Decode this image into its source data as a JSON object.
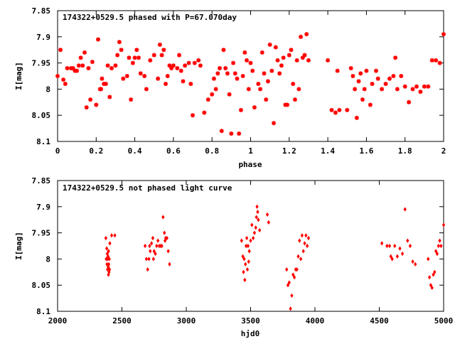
{
  "chart_data": [
    {
      "type": "scatter",
      "title": "174322+0529.5 phased with P=67.070day",
      "xlabel": "phase",
      "ylabel": "I[mag]",
      "xlim": [
        0,
        2
      ],
      "ylim": [
        8.1,
        7.85
      ],
      "y_inverted": true,
      "grid": false,
      "marker": "star",
      "color": "#ff0000",
      "x_ticks": [
        "0",
        "0.2",
        "0.4",
        "0.6",
        "0.8",
        "1",
        "1.2",
        "1.4",
        "1.6",
        "1.8",
        "2"
      ],
      "y_ticks": [
        "7.85",
        "7.9",
        "7.95",
        "8",
        "8.05",
        "8.1"
      ],
      "points": [
        [
          0.0,
          7.975
        ],
        [
          0.015,
          7.925
        ],
        [
          0.03,
          7.982
        ],
        [
          0.04,
          7.99
        ],
        [
          0.05,
          7.96
        ],
        [
          0.07,
          7.96
        ],
        [
          0.08,
          7.96
        ],
        [
          0.09,
          7.965
        ],
        [
          0.1,
          7.965
        ],
        [
          0.11,
          7.955
        ],
        [
          0.12,
          7.94
        ],
        [
          0.13,
          7.955
        ],
        [
          0.14,
          7.93
        ],
        [
          0.15,
          8.035
        ],
        [
          0.16,
          7.96
        ],
        [
          0.17,
          8.02
        ],
        [
          0.18,
          7.948
        ],
        [
          0.2,
          8.03
        ],
        [
          0.21,
          7.905
        ],
        [
          0.22,
          8.0
        ],
        [
          0.225,
          8.0
        ],
        [
          0.23,
          7.98
        ],
        [
          0.24,
          7.99
        ],
        [
          0.25,
          7.99
        ],
        [
          0.26,
          7.955
        ],
        [
          0.27,
          8.015
        ],
        [
          0.28,
          7.96
        ],
        [
          0.3,
          7.955
        ],
        [
          0.31,
          7.935
        ],
        [
          0.32,
          7.91
        ],
        [
          0.33,
          7.925
        ],
        [
          0.34,
          7.98
        ],
        [
          0.36,
          7.975
        ],
        [
          0.37,
          7.94
        ],
        [
          0.38,
          8.02
        ],
        [
          0.39,
          7.95
        ],
        [
          0.4,
          7.94
        ],
        [
          0.41,
          7.925
        ],
        [
          0.42,
          7.94
        ],
        [
          0.43,
          7.97
        ],
        [
          0.45,
          7.975
        ],
        [
          0.46,
          8.0
        ],
        [
          0.48,
          7.945
        ],
        [
          0.5,
          7.935
        ],
        [
          0.52,
          7.98
        ],
        [
          0.53,
          7.915
        ],
        [
          0.54,
          7.935
        ],
        [
          0.55,
          7.925
        ],
        [
          0.56,
          7.99
        ],
        [
          0.57,
          7.975
        ],
        [
          0.58,
          7.955
        ],
        [
          0.59,
          7.96
        ],
        [
          0.6,
          7.955
        ],
        [
          0.62,
          7.96
        ],
        [
          0.63,
          7.935
        ],
        [
          0.64,
          7.965
        ],
        [
          0.65,
          7.985
        ],
        [
          0.66,
          7.955
        ],
        [
          0.68,
          7.95
        ],
        [
          0.69,
          7.99
        ],
        [
          0.7,
          8.05
        ],
        [
          0.71,
          7.95
        ],
        [
          0.73,
          7.945
        ],
        [
          0.74,
          7.955
        ],
        [
          0.76,
          8.045
        ],
        [
          0.78,
          8.02
        ],
        [
          0.8,
          8.01
        ],
        [
          0.81,
          7.98
        ],
        [
          0.82,
          8.0
        ],
        [
          0.83,
          7.97
        ],
        [
          0.84,
          7.96
        ],
        [
          0.85,
          8.08
        ],
        [
          0.86,
          7.925
        ],
        [
          0.87,
          7.96
        ],
        [
          0.88,
          7.97
        ],
        [
          0.89,
          8.01
        ],
        [
          0.9,
          8.085
        ],
        [
          0.91,
          7.95
        ],
        [
          0.92,
          7.97
        ],
        [
          0.93,
          7.98
        ],
        [
          0.94,
          8.085
        ],
        [
          0.95,
          8.04
        ],
        [
          0.96,
          7.975
        ],
        [
          0.97,
          7.93
        ],
        [
          0.98,
          7.945
        ],
        [
          0.99,
          8.0
        ],
        [
          1.0,
          7.95
        ],
        [
          1.01,
          7.965
        ],
        [
          1.02,
          8.035
        ],
        [
          1.04,
          7.99
        ],
        [
          1.05,
          8.0
        ],
        [
          1.06,
          7.93
        ],
        [
          1.07,
          7.97
        ],
        [
          1.08,
          8.02
        ],
        [
          1.09,
          7.985
        ],
        [
          1.1,
          7.915
        ],
        [
          1.11,
          7.965
        ],
        [
          1.12,
          8.065
        ],
        [
          1.13,
          7.92
        ],
        [
          1.14,
          7.945
        ],
        [
          1.15,
          7.97
        ],
        [
          1.16,
          7.955
        ],
        [
          1.17,
          7.94
        ],
        [
          1.18,
          8.03
        ],
        [
          1.19,
          8.03
        ],
        [
          1.2,
          7.935
        ],
        [
          1.21,
          7.925
        ],
        [
          1.22,
          7.99
        ],
        [
          1.23,
          8.02
        ],
        [
          1.24,
          7.945
        ],
        [
          1.25,
          8.0
        ],
        [
          1.26,
          7.9
        ],
        [
          1.27,
          7.94
        ],
        [
          1.28,
          7.935
        ],
        [
          1.29,
          7.895
        ],
        [
          1.3,
          7.945
        ],
        [
          1.4,
          7.945
        ],
        [
          1.42,
          8.04
        ],
        [
          1.44,
          8.045
        ],
        [
          1.45,
          7.965
        ],
        [
          1.46,
          8.04
        ],
        [
          1.5,
          8.04
        ],
        [
          1.52,
          7.96
        ],
        [
          1.53,
          7.975
        ],
        [
          1.54,
          8.0
        ],
        [
          1.55,
          8.055
        ],
        [
          1.56,
          7.985
        ],
        [
          1.57,
          7.97
        ],
        [
          1.58,
          8.02
        ],
        [
          1.59,
          8.0
        ],
        [
          1.6,
          7.965
        ],
        [
          1.62,
          8.03
        ],
        [
          1.63,
          7.99
        ],
        [
          1.65,
          7.965
        ],
        [
          1.66,
          7.98
        ],
        [
          1.68,
          8.0
        ],
        [
          1.7,
          7.99
        ],
        [
          1.72,
          7.98
        ],
        [
          1.74,
          7.975
        ],
        [
          1.75,
          7.94
        ],
        [
          1.76,
          8.0
        ],
        [
          1.78,
          7.975
        ],
        [
          1.8,
          7.995
        ],
        [
          1.82,
          8.025
        ],
        [
          1.84,
          8.0
        ],
        [
          1.86,
          7.995
        ],
        [
          1.88,
          8.005
        ],
        [
          1.9,
          7.995
        ],
        [
          1.92,
          7.995
        ],
        [
          1.94,
          7.945
        ],
        [
          1.96,
          7.945
        ],
        [
          1.98,
          7.95
        ],
        [
          2.0,
          7.895
        ]
      ]
    },
    {
      "type": "scatter",
      "title": "174322+0529.5 not phased light curve",
      "xlabel": "hjd0",
      "ylabel": "I[mag]",
      "xlim": [
        2000,
        5000
      ],
      "ylim": [
        8.1,
        7.85
      ],
      "y_inverted": true,
      "grid": false,
      "marker": "diamond",
      "color": "#ff0000",
      "x_ticks": [
        "2000",
        "2500",
        "3000",
        "3500",
        "4000",
        "4500",
        "5000"
      ],
      "y_ticks": [
        "7.85",
        "7.9",
        "7.95",
        "8",
        "8.05",
        "8.1"
      ],
      "points": [
        [
          2375,
          7.96
        ],
        [
          2378,
          8.0
        ],
        [
          2380,
          8.0
        ],
        [
          2382,
          7.98
        ],
        [
          2384,
          8.01
        ],
        [
          2386,
          7.99
        ],
        [
          2388,
          8.02
        ],
        [
          2390,
          8.0
        ],
        [
          2392,
          7.995
        ],
        [
          2394,
          8.015
        ],
        [
          2395,
          8.03
        ],
        [
          2396,
          7.985
        ],
        [
          2398,
          8.01
        ],
        [
          2400,
          8.025
        ],
        [
          2402,
          8.0
        ],
        [
          2404,
          8.02
        ],
        [
          2406,
          7.97
        ],
        [
          2420,
          7.955
        ],
        [
          2445,
          7.955
        ],
        [
          2680,
          7.975
        ],
        [
          2690,
          8.0
        ],
        [
          2700,
          8.02
        ],
        [
          2710,
          8.0
        ],
        [
          2715,
          7.975
        ],
        [
          2720,
          7.985
        ],
        [
          2730,
          7.97
        ],
        [
          2740,
          7.96
        ],
        [
          2745,
          8.0
        ],
        [
          2750,
          7.985
        ],
        [
          2760,
          7.99
        ],
        [
          2770,
          7.975
        ],
        [
          2780,
          7.965
        ],
        [
          2790,
          7.975
        ],
        [
          2800,
          7.975
        ],
        [
          2810,
          7.975
        ],
        [
          2820,
          7.92
        ],
        [
          2830,
          7.95
        ],
        [
          2835,
          7.965
        ],
        [
          2840,
          7.96
        ],
        [
          2850,
          7.96
        ],
        [
          2860,
          7.985
        ],
        [
          2870,
          8.01
        ],
        [
          3430,
          7.965
        ],
        [
          3440,
          7.995
        ],
        [
          3445,
          8.025
        ],
        [
          3450,
          8.0
        ],
        [
          3455,
          8.04
        ],
        [
          3460,
          8.01
        ],
        [
          3465,
          7.975
        ],
        [
          3470,
          7.96
        ],
        [
          3475,
          8.02
        ],
        [
          3480,
          7.975
        ],
        [
          3485,
          8.005
        ],
        [
          3490,
          7.985
        ],
        [
          3500,
          7.965
        ],
        [
          3510,
          7.935
        ],
        [
          3520,
          7.96
        ],
        [
          3530,
          7.95
        ],
        [
          3540,
          7.94
        ],
        [
          3545,
          7.92
        ],
        [
          3550,
          7.9
        ],
        [
          3555,
          7.91
        ],
        [
          3560,
          7.925
        ],
        [
          3570,
          7.945
        ],
        [
          3630,
          7.915
        ],
        [
          3640,
          7.93
        ],
        [
          3780,
          8.02
        ],
        [
          3790,
          8.05
        ],
        [
          3800,
          8.045
        ],
        [
          3810,
          8.095
        ],
        [
          3820,
          8.07
        ],
        [
          3830,
          8.03
        ],
        [
          3840,
          8.035
        ],
        [
          3850,
          8.02
        ],
        [
          3860,
          8.02
        ],
        [
          3870,
          7.995
        ],
        [
          3880,
          7.965
        ],
        [
          3890,
          8.0
        ],
        [
          3900,
          7.955
        ],
        [
          3910,
          7.985
        ],
        [
          3920,
          7.97
        ],
        [
          3930,
          7.955
        ],
        [
          3940,
          7.975
        ],
        [
          3950,
          7.96
        ],
        [
          4520,
          7.97
        ],
        [
          4560,
          7.975
        ],
        [
          4580,
          7.975
        ],
        [
          4590,
          7.995
        ],
        [
          4600,
          8.0
        ],
        [
          4620,
          7.975
        ],
        [
          4640,
          7.995
        ],
        [
          4660,
          7.98
        ],
        [
          4680,
          7.99
        ],
        [
          4700,
          7.905
        ],
        [
          4720,
          7.965
        ],
        [
          4740,
          7.975
        ],
        [
          4760,
          8.005
        ],
        [
          4780,
          8.01
        ],
        [
          4880,
          8.0
        ],
        [
          4890,
          8.035
        ],
        [
          4900,
          8.05
        ],
        [
          4910,
          8.055
        ],
        [
          4920,
          8.03
        ],
        [
          4930,
          8.025
        ],
        [
          4940,
          7.985
        ],
        [
          4950,
          7.99
        ],
        [
          4960,
          7.975
        ],
        [
          4970,
          7.965
        ],
        [
          4980,
          7.975
        ],
        [
          5000,
          7.935
        ]
      ]
    }
  ]
}
